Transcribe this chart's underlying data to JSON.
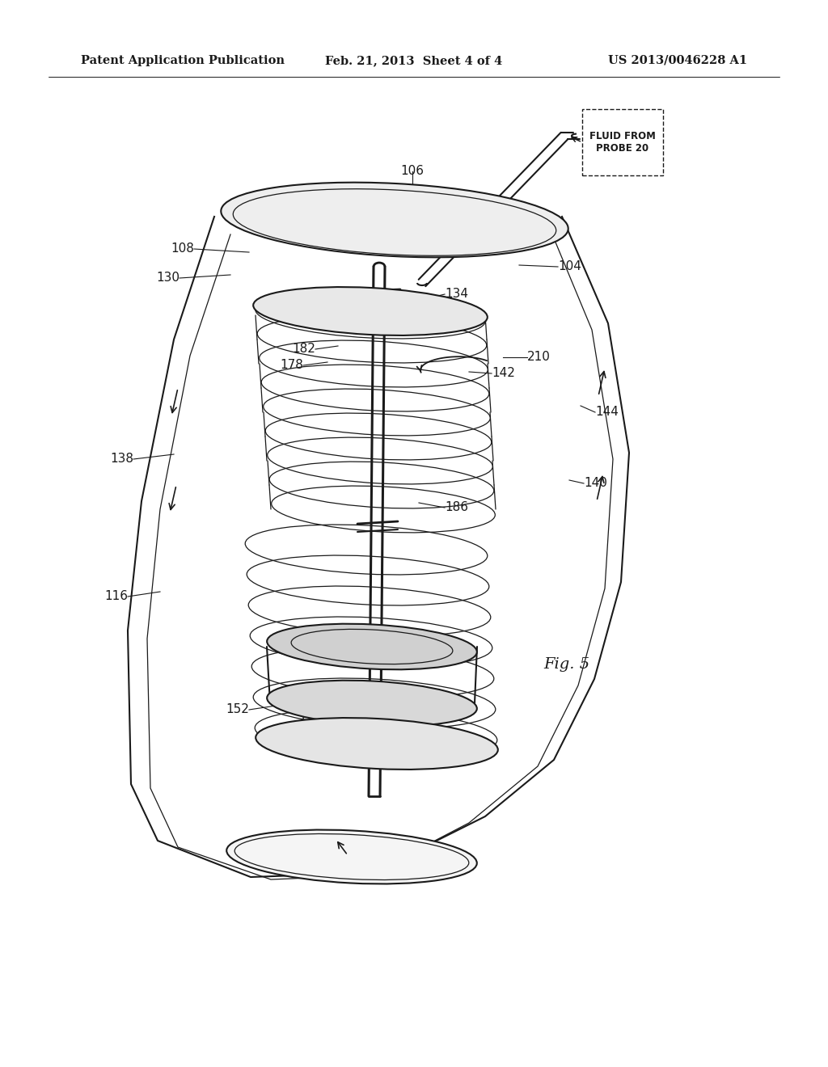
{
  "background_color": "#ffffff",
  "header_left": "Patent Application Publication",
  "header_center": "Feb. 21, 2013  Sheet 4 of 4",
  "header_right": "US 2013/0046228 A1",
  "figure_label": "Fig. 5",
  "fluid_label": "FLUID FROM\nPROBE 20",
  "line_color": "#1a1a1a",
  "text_color": "#1a1a1a",
  "label_font_size": 11,
  "header_font_size": 10.5
}
